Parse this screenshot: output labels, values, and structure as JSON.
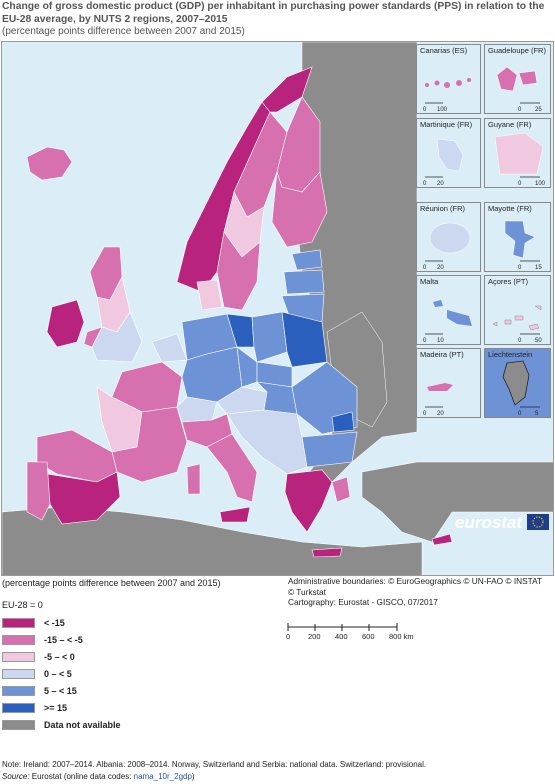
{
  "title": "Change of gross domestic product (GDP) per inhabitant in purchasing power standards (PPS) in relation to the EU-28 average, by NUTS 2 regions, 2007–2015",
  "subtitle": "(percentage points difference between 2007 and 2015)",
  "unit_note": "(percentage points difference between 2007 and 2015)",
  "credits": [
    "Administrative boundaries: © EuroGeographics © UN-FAO © INSTAT",
    "© Turkstat",
    "Cartography: Eurostat - GISCO, 07/2017"
  ],
  "scale": {
    "ticks": [
      "0",
      "200",
      "400",
      "600",
      "800 km"
    ]
  },
  "legend": {
    "base": "EU-28 = 0",
    "items": [
      {
        "label": "< -15",
        "color": "#b8237e"
      },
      {
        "label": "-15 – < -5",
        "color": "#d670ae"
      },
      {
        "label": "-5 – < 0",
        "color": "#f0c8df"
      },
      {
        "label": "0 – < 5",
        "color": "#cbd8f0"
      },
      {
        "label": "5 – < 15",
        "color": "#6d92d6"
      },
      {
        "label": ">= 15",
        "color": "#2a5fbd"
      },
      {
        "label": "Data not available",
        "color": "#8c8c8c"
      }
    ]
  },
  "insets": [
    {
      "name": "Canarias (ES)",
      "scale": [
        "0",
        "100"
      ]
    },
    {
      "name": "Guadeloupe (FR)",
      "scale": [
        "0",
        "25"
      ]
    },
    {
      "name": "Martinique (FR)",
      "scale": [
        "0",
        "20"
      ]
    },
    {
      "name": "Guyane (FR)",
      "scale": [
        "0",
        "100"
      ]
    },
    {
      "name": "Réunion (FR)",
      "scale": [
        "0",
        "20"
      ]
    },
    {
      "name": "Mayotte (FR)",
      "scale": [
        "0",
        "15"
      ]
    },
    {
      "name": "Malta",
      "scale": [
        "0",
        "10"
      ]
    },
    {
      "name": "Açores (PT)",
      "scale": [
        "0",
        "50"
      ]
    },
    {
      "name": "Madeira (PT)",
      "scale": [
        "0",
        "20"
      ]
    },
    {
      "name": "Liechtenstein",
      "scale": [
        "0",
        "5"
      ]
    }
  ],
  "logo": "eurostat",
  "note": "Note: Ireland: 2007–2014. Albania: 2008–2014. Norway, Switzerland and Serbia: national data. Switzerland: provisional.",
  "source": {
    "prefix": "Source:",
    "text": " Eurostat (online data codes: ",
    "code": "nama_10r_2gdp",
    "suffix": ")"
  }
}
